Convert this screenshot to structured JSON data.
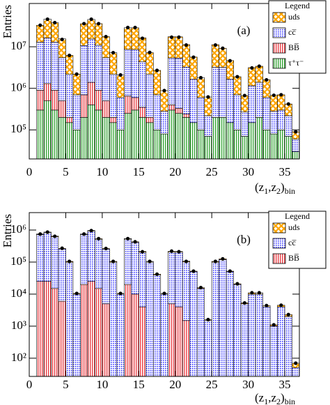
{
  "chart_data": [
    {
      "type": "histogram",
      "panel_label": "(a)",
      "y_label": "Entries",
      "x_label": [
        "(z",
        "1",
        ",z",
        "2",
        ")",
        "bin"
      ],
      "legend_title": "Legend",
      "bins": [
        1,
        2,
        3,
        4,
        5,
        6,
        7,
        8,
        9,
        10,
        11,
        12,
        13,
        14,
        15,
        16,
        17,
        18,
        19,
        20,
        21,
        22,
        23,
        24,
        25,
        26,
        27,
        28,
        29,
        30,
        31,
        32,
        33,
        34,
        35,
        36,
        37
      ],
      "xlim": [
        0,
        37
      ],
      "xticks": [
        0,
        5,
        10,
        15,
        20,
        25,
        30,
        35
      ],
      "ylim": [
        20000,
        110000000
      ],
      "log_y": true,
      "yticks": [
        {
          "value": 100000,
          "label": "10⁵"
        },
        {
          "value": 1000000,
          "label": "10⁶"
        },
        {
          "value": 10000000,
          "label": "10⁷"
        }
      ],
      "series": [
        {
          "name": "τ⁺τ⁻",
          "color": "#2ca02c",
          "hatch": "vlines",
          "values": [
            300000,
            500000,
            300000,
            200000,
            150000,
            100000,
            200000,
            400000,
            300000,
            200000,
            150000,
            100000,
            250000,
            300000,
            200000,
            150000,
            100000,
            80000,
            300000,
            250000,
            200000,
            150000,
            100000,
            70000,
            200000,
            200000,
            150000,
            100000,
            70000,
            150000,
            200000,
            100000,
            80000,
            100000,
            70000,
            30000
          ]
        },
        {
          "name": "BB̅",
          "color": "#e8333a",
          "hatch": "vlines",
          "values": [
            600000,
            800000,
            600000,
            300000,
            50000,
            0,
            500000,
            1000000,
            600000,
            300000,
            50000,
            0,
            400000,
            300000,
            150000,
            50000,
            0,
            0,
            100000,
            80000,
            40000,
            0,
            0,
            0,
            0,
            0,
            0,
            0,
            0,
            0,
            0,
            0,
            0,
            0,
            0,
            0
          ]
        },
        {
          "name": "cc̅",
          "color": "#3b3bff",
          "hatch": "dots",
          "values": [
            12000000,
            15000000,
            12000000,
            5000000,
            2000000,
            600000,
            10000000,
            14000000,
            10000000,
            5000000,
            2000000,
            500000,
            8000000,
            8000000,
            4000000,
            2000000,
            600000,
            200000,
            5000000,
            5000000,
            3000000,
            1500000,
            500000,
            150000,
            3000000,
            3000000,
            1500000,
            600000,
            200000,
            1000000,
            1200000,
            500000,
            200000,
            200000,
            150000,
            30000
          ]
        },
        {
          "name": "uds",
          "color": "#ffa500",
          "hatch": "cross",
          "values": [
            20000000,
            30000000,
            25000000,
            10000000,
            4000000,
            1500000,
            25000000,
            30000000,
            25000000,
            12000000,
            5000000,
            1500000,
            20000000,
            20000000,
            12000000,
            5000000,
            2000000,
            600000,
            12000000,
            12000000,
            8000000,
            4000000,
            1200000,
            400000,
            8000000,
            6000000,
            3000000,
            1200000,
            400000,
            2000000,
            2000000,
            1000000,
            400000,
            400000,
            200000,
            30000
          ]
        }
      ],
      "points": {
        "color": "#000000",
        "values": [
          33000000,
          46000000,
          38000000,
          15000000,
          6200000,
          2200000,
          36000000,
          46000000,
          36000000,
          17500000,
          7200000,
          2100000,
          29000000,
          29000000,
          16000000,
          7300000,
          2700000,
          880000,
          17000000,
          17000000,
          11000000,
          5600000,
          1800000,
          620000,
          11000000,
          9200000,
          4600000,
          1900000,
          670000,
          3100000,
          3400000,
          1600000,
          680000,
          700000,
          420000,
          90000
        ]
      }
    },
    {
      "type": "histogram",
      "panel_label": "(b)",
      "y_label": "Entries",
      "x_label": [
        "(z",
        "1",
        ",z",
        "2",
        ")",
        "bin"
      ],
      "legend_title": "Legend",
      "bins": [
        1,
        2,
        3,
        4,
        5,
        6,
        7,
        8,
        9,
        10,
        11,
        12,
        13,
        14,
        15,
        16,
        17,
        18,
        19,
        20,
        21,
        22,
        23,
        24,
        25,
        26,
        27,
        28,
        29,
        30,
        31,
        32,
        33,
        34,
        35,
        36,
        37
      ],
      "xlim": [
        0,
        37
      ],
      "xticks": [
        0,
        5,
        10,
        15,
        20,
        25,
        30,
        35
      ],
      "ylim": [
        27,
        3500000
      ],
      "log_y": true,
      "yticks": [
        {
          "value": 100,
          "label": "10²"
        },
        {
          "value": 1000,
          "label": "10³"
        },
        {
          "value": 10000,
          "label": "10⁴"
        },
        {
          "value": 100000,
          "label": "10⁵"
        },
        {
          "value": 1000000,
          "label": "10⁶"
        }
      ],
      "series": [
        {
          "name": "BB̅",
          "color": "#e8333a",
          "hatch": "vlines",
          "values": [
            25000,
            25000,
            15000,
            6000,
            0,
            0,
            20000,
            25000,
            15000,
            5000,
            0,
            0,
            20000,
            10000,
            4000,
            0,
            0,
            0,
            5000,
            4000,
            1500,
            0,
            0,
            0,
            0,
            0,
            0,
            0,
            0,
            0,
            0,
            0,
            0,
            0,
            0,
            0
          ]
        },
        {
          "name": "cc̅",
          "color": "#3b3bff",
          "hatch": "dots",
          "values": [
            700000,
            800000,
            600000,
            250000,
            100000,
            10000,
            700000,
            900000,
            500000,
            250000,
            100000,
            10000,
            500000,
            400000,
            200000,
            100000,
            40000,
            10000,
            200000,
            200000,
            100000,
            50000,
            15000,
            1500,
            100000,
            120000,
            50000,
            20000,
            5000,
            10000,
            10000,
            4000,
            1000,
            4000,
            2000,
            50
          ]
        },
        {
          "name": "uds",
          "color": "#ffa500",
          "hatch": "cross",
          "values": [
            30000,
            40000,
            30000,
            10000,
            5000,
            500,
            30000,
            40000,
            20000,
            10000,
            5000,
            500,
            20000,
            20000,
            10000,
            5000,
            2000,
            500,
            10000,
            10000,
            5000,
            2000,
            800,
            100,
            5000,
            6000,
            2000,
            1000,
            300,
            1000,
            1000,
            400,
            100,
            500,
            300,
            20
          ]
        }
      ],
      "points": {
        "color": "#000000",
        "values": [
          750000,
          860000,
          640000,
          270000,
          105000,
          10500,
          750000,
          960000,
          540000,
          265000,
          105000,
          10500,
          540000,
          430000,
          210000,
          105000,
          42000,
          10500,
          220000,
          210000,
          105000,
          52000,
          16000,
          1600,
          105000,
          126000,
          52000,
          21000,
          5300,
          11000,
          11000,
          4400,
          1100,
          4500,
          2300,
          70
        ]
      }
    }
  ]
}
